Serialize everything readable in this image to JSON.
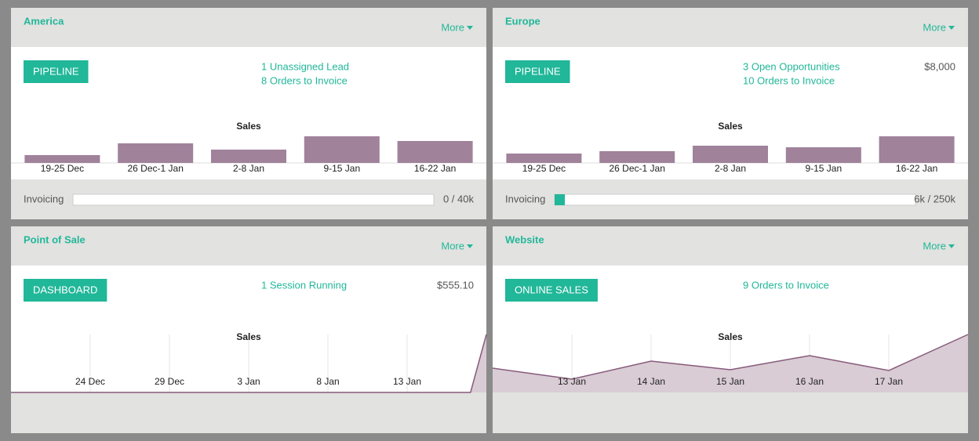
{
  "cards": [
    {
      "title": "America",
      "more": "More",
      "button": "PIPELINE",
      "links": [
        "1 Unassigned Lead",
        "8 Orders to Invoice"
      ],
      "chart": {
        "type": "bar",
        "title": "Sales",
        "categories": [
          "19-25 Dec",
          "26 Dec-1 Jan",
          "2-8 Jan",
          "9-15 Jan",
          "16-22 Jan"
        ],
        "values": [
          10,
          25,
          17,
          34,
          28
        ],
        "ylim": [
          0,
          35
        ],
        "color": "#a0829b"
      },
      "invoicing": {
        "label": "Invoicing",
        "value": 0,
        "max": 40,
        "text": "0 / 40k"
      }
    },
    {
      "title": "Europe",
      "more": "More",
      "button": "PIPELINE",
      "links": [
        "3 Open Opportunities",
        "10 Orders to Invoice"
      ],
      "amount": "$8,000",
      "chart": {
        "type": "bar",
        "title": "Sales",
        "categories": [
          "19-25 Dec",
          "26 Dec-1 Jan",
          "2-8 Jan",
          "9-15 Jan",
          "16-22 Jan"
        ],
        "values": [
          12,
          15,
          22,
          20,
          34
        ],
        "ylim": [
          0,
          35
        ],
        "color": "#a0829b"
      },
      "invoicing": {
        "label": "Invoicing",
        "value": 6,
        "max": 250,
        "text": "6k / 250k"
      }
    },
    {
      "title": "Point of Sale",
      "more": "More",
      "button": "DASHBOARD",
      "links": [
        "1 Session Running"
      ],
      "amount": "$555.10",
      "chart": {
        "type": "line",
        "title": "Sales",
        "x": [
          0,
          29,
          30
        ],
        "values": [
          0,
          0,
          1
        ],
        "xlim": [
          0,
          30
        ],
        "ylim": [
          0,
          1
        ],
        "xticks": [
          {
            "value": 5,
            "label": "24 Dec"
          },
          {
            "value": 10,
            "label": "29 Dec"
          },
          {
            "value": 15,
            "label": "3 Jan"
          },
          {
            "value": 20,
            "label": "8 Jan"
          },
          {
            "value": 25,
            "label": "13 Jan"
          }
        ],
        "color": "#875a7b",
        "fill": "#d9ccd5"
      }
    },
    {
      "title": "Website",
      "more": "More",
      "button": "ONLINE SALES",
      "links": [
        "9 Orders to Invoice"
      ],
      "chart": {
        "type": "line",
        "title": "Sales",
        "x": [
          0,
          1,
          2,
          3,
          4,
          5,
          6
        ],
        "values": [
          31,
          17,
          40,
          29,
          47,
          28,
          74
        ],
        "xlim": [
          0,
          6
        ],
        "ylim": [
          0,
          74
        ],
        "xticks": [
          {
            "value": 1,
            "label": "13 Jan"
          },
          {
            "value": 2,
            "label": "14 Jan"
          },
          {
            "value": 3,
            "label": "15 Jan"
          },
          {
            "value": 4,
            "label": "16 Jan"
          },
          {
            "value": 5,
            "label": "17 Jan"
          }
        ],
        "color": "#875a7b",
        "fill": "#d9ccd5"
      }
    }
  ]
}
